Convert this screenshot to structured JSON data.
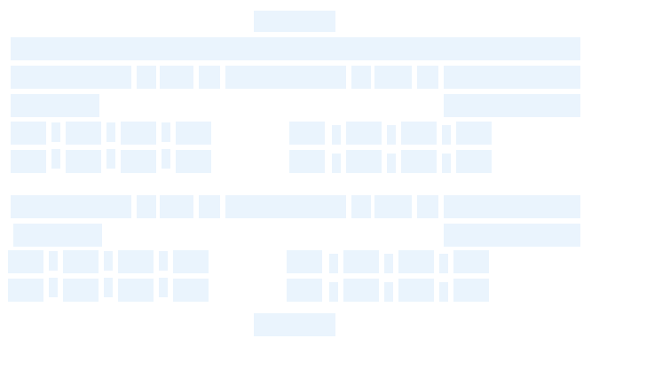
{
  "screen": {
    "state": "loading-skeleton",
    "placeholder_color": "#eaf4fd",
    "background_color": "#ffffff"
  }
}
